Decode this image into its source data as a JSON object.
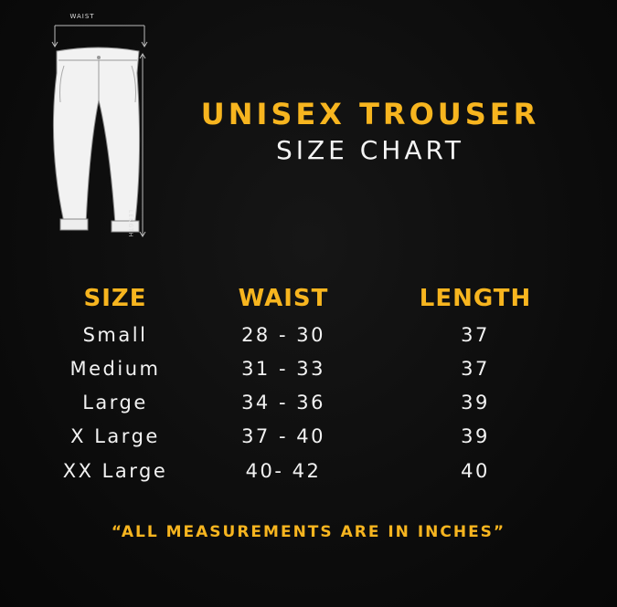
{
  "illustration": {
    "waist_label": "WAIST",
    "length_label": "LENGTH"
  },
  "title": "UNISEX TROUSER",
  "subtitle": "SIZE CHART",
  "table": {
    "headers": [
      "SIZE",
      "WAIST",
      "LENGTH"
    ],
    "rows": [
      [
        "Small",
        "28 - 30",
        "37"
      ],
      [
        "Medium",
        "31 - 33",
        "37"
      ],
      [
        "Large",
        "34 - 36",
        "39"
      ],
      [
        "X Large",
        "37 - 40",
        "39"
      ],
      [
        "XX Large",
        "40- 42",
        "40"
      ]
    ]
  },
  "footer": "“ALL MEASUREMENTS ARE IN INCHES”",
  "colors": {
    "accent": "#f7b51f",
    "background": "#0c0c0c",
    "text": "#f4f4f4"
  }
}
